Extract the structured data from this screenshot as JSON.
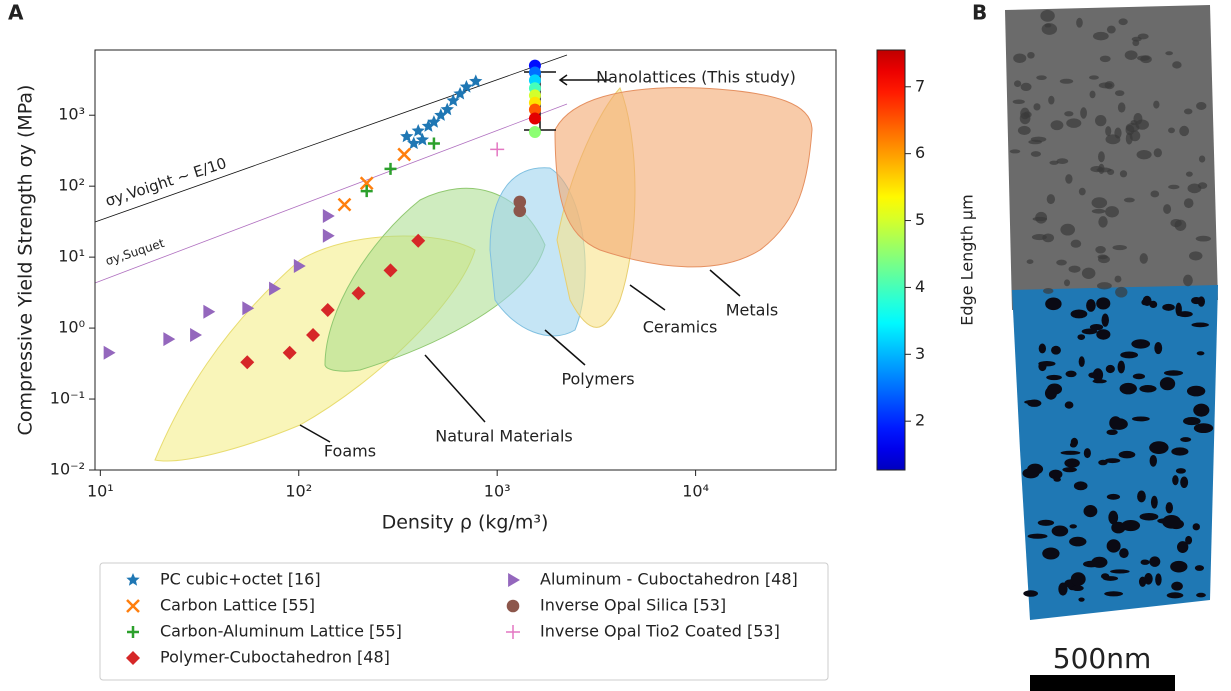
{
  "panel_a_label": "A",
  "panel_b_label": "B",
  "scale_bar_label": "500nm",
  "chart_data": {
    "type": "scatter",
    "xlabel": "Density ρ (kg/m³)",
    "ylabel": "Compressive Yield Strength σy (MPa)",
    "xscale": "log",
    "yscale": "log",
    "xlim": [
      9.4,
      51000
    ],
    "ylim": [
      0.01,
      8300
    ],
    "xticks": [
      {
        "value": 10,
        "label": "10¹"
      },
      {
        "value": 100,
        "label": "10²"
      },
      {
        "value": 1000,
        "label": "10³"
      },
      {
        "value": 10000,
        "label": "10⁴"
      }
    ],
    "yticks": [
      {
        "value": 0.01,
        "label": "10⁻²"
      },
      {
        "value": 0.1,
        "label": "10⁻¹"
      },
      {
        "value": 1,
        "label": "10⁰"
      },
      {
        "value": 10,
        "label": "10¹"
      },
      {
        "value": 100,
        "label": "10²"
      },
      {
        "value": 1000,
        "label": "10³"
      }
    ],
    "series": [
      {
        "name": "PC cubic+octet [16]",
        "color": "#1f77b4",
        "marker": "star",
        "x": [
          350,
          380,
          400,
          420,
          450,
          480,
          520,
          560,
          600,
          650,
          700,
          780
        ],
        "y": [
          500,
          400,
          600,
          450,
          700,
          800,
          1000,
          1200,
          1600,
          2000,
          2500,
          3000
        ]
      },
      {
        "name": "Carbon Lattice [55]",
        "color": "#ff7f0e",
        "marker": "x",
        "x": [
          170,
          220,
          340
        ],
        "y": [
          55,
          110,
          280
        ]
      },
      {
        "name": "Carbon-Aluminum Lattice [55]",
        "color": "#2ca02c",
        "marker": "plus",
        "x": [
          220,
          290,
          480
        ],
        "y": [
          85,
          175,
          400
        ]
      },
      {
        "name": "Polymer-Cuboctahedron [48]",
        "color": "#d62728",
        "marker": "diamond",
        "x": [
          55,
          90,
          118,
          140,
          200,
          290,
          400
        ],
        "y": [
          0.33,
          0.45,
          0.8,
          1.8,
          3.1,
          6.5,
          17
        ]
      },
      {
        "name": "Aluminum - Cuboctahedron [48]",
        "color": "#9467bd",
        "marker": "triangle",
        "x": [
          11,
          22,
          30,
          35,
          55,
          75,
          100,
          140,
          140
        ],
        "y": [
          0.45,
          0.7,
          0.8,
          1.7,
          1.9,
          3.6,
          7.5,
          20,
          38
        ]
      },
      {
        "name": "Inverse Opal Silica [53]",
        "color": "#8c564b",
        "marker": "circle",
        "x": [
          1300,
          1300
        ],
        "y": [
          60,
          45
        ]
      },
      {
        "name": "Inverse Opal Tio2 Coated [53]",
        "color": "#e377c2",
        "marker": "thinplus",
        "x": [
          1000
        ],
        "y": [
          330
        ]
      }
    ],
    "nanolattices": {
      "label": "Nanolattices (This study)",
      "x": [
        1550,
        1550,
        1550,
        1550,
        1550,
        1550,
        1550,
        1550,
        1550
      ],
      "y": [
        5000,
        4000,
        3100,
        2400,
        1900,
        1500,
        1200,
        900,
        580
      ],
      "edge_length": [
        1.8,
        2.5,
        3.2,
        4.0,
        5.0,
        5.5,
        6.5,
        7.3,
        4.5
      ]
    },
    "colorbar": {
      "label": "Edge Length μm",
      "clim": [
        1.27,
        7.55
      ],
      "ticks": [
        2,
        3,
        4,
        5,
        6,
        7
      ],
      "colormap": "jet"
    },
    "annotations": {
      "voigt": "σy,Voight ~ E/10",
      "suquet": "σy,Suquet",
      "foams": "Foams",
      "natural": "Natural Materials",
      "polymers": "Polymers",
      "ceramics": "Ceramics",
      "metals": "Metals"
    }
  }
}
